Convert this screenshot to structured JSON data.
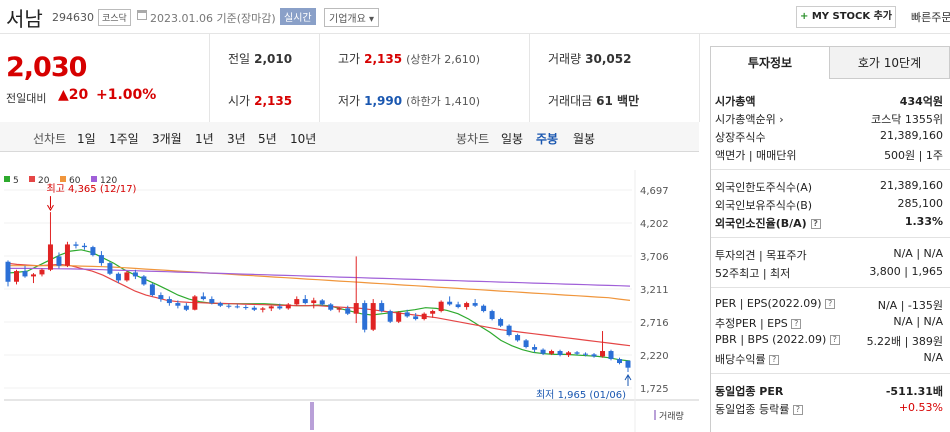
{
  "header": {
    "name": "서남",
    "code": "294630",
    "market": "코스닥",
    "date": "2023.01.06 기준(장마감)",
    "realtime": "실시간",
    "overview": "기업개요 ▾",
    "mystock_plus": "+",
    "mystock_label": "MY STOCK 추가",
    "quick_order": "빠른주문"
  },
  "price": {
    "current": "2,030",
    "change_label": "전일대비",
    "change_arrow": "▲",
    "change_value": "20",
    "change_pct": "+1.00%"
  },
  "stats": {
    "prev_close_label": "전일",
    "prev_close": "2,010",
    "open_label": "시가",
    "open": "2,135",
    "high_label": "고가",
    "high": "2,135",
    "upper_limit": "(상한가 2,610)",
    "low_label": "저가",
    "low": "1,990",
    "lower_limit": "(하한가 1,410)",
    "volume_label": "거래량",
    "volume": "30,052",
    "amount_label": "거래대금",
    "amount": "61 백만"
  },
  "chart_tabs": {
    "line_label": "선차트",
    "line_periods": [
      "1일",
      "1주일",
      "3개월",
      "1년",
      "3년",
      "5년",
      "10년"
    ],
    "candle_label": "봉차트",
    "candle_periods": [
      "일봉",
      "주봉",
      "월봉"
    ],
    "candle_selected": "주봉"
  },
  "chart_data": {
    "type": "candlestick",
    "legend": [
      {
        "name": "5",
        "color": "#2eaa2e"
      },
      {
        "name": "20",
        "color": "#e54646"
      },
      {
        "name": "60",
        "color": "#f0963c"
      },
      {
        "name": "120",
        "color": "#a060d8"
      }
    ],
    "y_ticks": [
      "4,697",
      "4,202",
      "3,706",
      "3,211",
      "2,716",
      "2,220",
      "1,725"
    ],
    "ylim": [
      1725,
      4697
    ],
    "max_annotation": "최고 4,365 (12/17)",
    "min_annotation": "최저 1,965 (01/06)",
    "volume_label": "거래량",
    "up_color": "#e02424",
    "down_color": "#2b6fd6",
    "candles": [
      [
        3620,
        3640,
        3250,
        3320
      ],
      [
        3320,
        3500,
        3280,
        3480
      ],
      [
        3480,
        3560,
        3380,
        3400
      ],
      [
        3400,
        3450,
        3300,
        3430
      ],
      [
        3430,
        3520,
        3400,
        3500
      ],
      [
        3500,
        4365,
        3480,
        3880
      ],
      [
        3700,
        3760,
        3520,
        3560
      ],
      [
        3560,
        3920,
        3540,
        3880
      ],
      [
        3880,
        3920,
        3820,
        3860
      ],
      [
        3860,
        3900,
        3800,
        3840
      ],
      [
        3840,
        3860,
        3700,
        3720
      ],
      [
        3720,
        3780,
        3560,
        3600
      ],
      [
        3600,
        3620,
        3420,
        3440
      ],
      [
        3440,
        3460,
        3300,
        3340
      ],
      [
        3340,
        3480,
        3320,
        3460
      ],
      [
        3460,
        3500,
        3360,
        3400
      ],
      [
        3400,
        3420,
        3260,
        3280
      ],
      [
        3280,
        3300,
        3100,
        3120
      ],
      [
        3120,
        3160,
        3020,
        3060
      ],
      [
        3060,
        3100,
        2960,
        3000
      ],
      [
        3000,
        3040,
        2920,
        2960
      ],
      [
        2960,
        3000,
        2880,
        2900
      ],
      [
        2900,
        3120,
        2890,
        3100
      ],
      [
        3100,
        3160,
        3040,
        3060
      ],
      [
        3060,
        3100,
        2980,
        3000
      ],
      [
        3000,
        3020,
        2940,
        2960
      ],
      [
        2960,
        2990,
        2920,
        2950
      ],
      [
        2950,
        2980,
        2920,
        2940
      ],
      [
        2940,
        2970,
        2900,
        2930
      ],
      [
        2930,
        2960,
        2880,
        2900
      ],
      [
        2900,
        2940,
        2860,
        2920
      ],
      [
        2920,
        2960,
        2880,
        2950
      ],
      [
        2950,
        2990,
        2900,
        2920
      ],
      [
        2920,
        3000,
        2900,
        2980
      ],
      [
        2980,
        3100,
        2960,
        3060
      ],
      [
        3060,
        3120,
        2980,
        3000
      ],
      [
        3000,
        3080,
        2920,
        3040
      ],
      [
        3040,
        3060,
        2960,
        2980
      ],
      [
        2980,
        3000,
        2880,
        2900
      ],
      [
        2900,
        2940,
        2860,
        2920
      ],
      [
        2920,
        2960,
        2820,
        2840
      ],
      [
        2840,
        3700,
        2700,
        3000
      ],
      [
        3000,
        3040,
        2560,
        2600
      ],
      [
        2600,
        3060,
        2580,
        3000
      ],
      [
        3000,
        3040,
        2860,
        2880
      ],
      [
        2880,
        2900,
        2700,
        2720
      ],
      [
        2720,
        2880,
        2700,
        2860
      ],
      [
        2860,
        2900,
        2780,
        2800
      ],
      [
        2800,
        2850,
        2740,
        2760
      ],
      [
        2760,
        2860,
        2740,
        2840
      ],
      [
        2840,
        2900,
        2780,
        2880
      ],
      [
        2880,
        3040,
        2860,
        3020
      ],
      [
        3020,
        3100,
        2960,
        2980
      ],
      [
        2980,
        3020,
        2920,
        2940
      ],
      [
        2940,
        3020,
        2900,
        3000
      ],
      [
        3000,
        3060,
        2940,
        2960
      ],
      [
        2960,
        2980,
        2860,
        2880
      ],
      [
        2880,
        2900,
        2740,
        2760
      ],
      [
        2760,
        2780,
        2640,
        2660
      ],
      [
        2660,
        2680,
        2500,
        2520
      ],
      [
        2520,
        2540,
        2420,
        2440
      ],
      [
        2440,
        2460,
        2320,
        2340
      ],
      [
        2340,
        2380,
        2260,
        2300
      ],
      [
        2300,
        2320,
        2220,
        2240
      ],
      [
        2240,
        2300,
        2220,
        2280
      ],
      [
        2280,
        2300,
        2200,
        2220
      ],
      [
        2220,
        2280,
        2190,
        2260
      ],
      [
        2260,
        2280,
        2220,
        2240
      ],
      [
        2240,
        2260,
        2200,
        2230
      ],
      [
        2230,
        2250,
        2180,
        2200
      ],
      [
        2200,
        2580,
        2180,
        2280
      ],
      [
        2280,
        2300,
        2140,
        2160
      ],
      [
        2160,
        2180,
        2080,
        2100
      ],
      [
        2135,
        2135,
        1965,
        2030
      ]
    ],
    "ma_levels": {
      "ma5": [
        3450,
        3460,
        3480,
        3560,
        3640,
        3720,
        3780,
        3800,
        3760,
        3680,
        3600,
        3500,
        3420,
        3350,
        3280,
        3200,
        3120,
        3060,
        3020,
        3000,
        2990,
        2990,
        2990,
        2990,
        2990,
        2980,
        2970,
        2960,
        2960,
        2970,
        2960,
        2920,
        2880,
        2840,
        2820,
        2840,
        2860,
        2880,
        2900,
        2930,
        2920,
        2890,
        2840,
        2760,
        2660,
        2560,
        2440,
        2360,
        2300,
        2260,
        2240,
        2230,
        2230,
        2220,
        2210,
        2200,
        2180,
        2150,
        2130
      ],
      "ma20": [
        3600,
        3580,
        3570,
        3560,
        3570,
        3580,
        3560,
        3520,
        3480,
        3420,
        3340,
        3260,
        3180,
        3120,
        3080,
        3040,
        3020,
        3010,
        3005,
        3000,
        2995,
        2990,
        2985,
        2980,
        2975,
        2970,
        2965,
        2960,
        2960,
        2960,
        2950,
        2940,
        2930,
        2920,
        2900,
        2880,
        2860,
        2840,
        2820,
        2800,
        2780,
        2750,
        2720,
        2690,
        2660,
        2630,
        2600,
        2580,
        2560,
        2540,
        2520,
        2500,
        2480,
        2460,
        2440,
        2420,
        2400,
        2380,
        2360
      ],
      "ma60": [
        3560,
        3560,
        3560,
        3560,
        3560,
        3560,
        3560,
        3555,
        3550,
        3545,
        3540,
        3530,
        3520,
        3510,
        3500,
        3490,
        3480,
        3470,
        3460,
        3450,
        3440,
        3430,
        3420,
        3410,
        3400,
        3390,
        3380,
        3370,
        3360,
        3350,
        3340,
        3330,
        3320,
        3310,
        3300,
        3290,
        3280,
        3270,
        3260,
        3250,
        3240,
        3230,
        3220,
        3210,
        3200,
        3190,
        3180,
        3170,
        3160,
        3150,
        3140,
        3130,
        3120,
        3110,
        3100,
        3090,
        3080,
        3060,
        3040
      ],
      "ma120": [
        3520,
        3520,
        3520,
        3518,
        3516,
        3514,
        3512,
        3510,
        3505,
        3500,
        3495,
        3490,
        3485,
        3480,
        3475,
        3470,
        3465,
        3460,
        3455,
        3450,
        3445,
        3440,
        3435,
        3430,
        3425,
        3420,
        3415,
        3410,
        3405,
        3400,
        3395,
        3390,
        3385,
        3380,
        3375,
        3370,
        3365,
        3360,
        3355,
        3350,
        3345,
        3340,
        3335,
        3330,
        3325,
        3320,
        3315,
        3310,
        3305,
        3300,
        3295,
        3290,
        3285,
        3280,
        3275,
        3270,
        3265,
        3260,
        3255
      ]
    }
  },
  "right_panel": {
    "tab_invest": "투자정보",
    "tab_hoga": "호가 10단계",
    "market_cap_label": "시가총액",
    "market_cap": "434억원",
    "rank_label": "시가총액순위",
    "rank": "코스닥 1355위",
    "shares_label": "상장주식수",
    "shares": "21,389,160",
    "par_label": "액면가 | 매매단위",
    "par": "500원 | 1주",
    "foreign_limit_label": "외국인한도주식수(A)",
    "foreign_limit": "21,389,160",
    "foreign_hold_label": "외국인보유주식수(B)",
    "foreign_hold": "285,100",
    "foreign_ratio_label": "외국인소진율(B/A)",
    "foreign_ratio": "1.33%",
    "opinion_label": "투자의견 | 목표주가",
    "opinion": "N/A | N/A",
    "week52_label": "52주최고 | 최저",
    "week52": "3,800 | 1,965",
    "per_label": "PER | EPS(2022.09)",
    "per": "N/A | -135원",
    "est_per_label": "추정PER | EPS",
    "est_per": "N/A | N/A",
    "pbr_label": "PBR | BPS (2022.09)",
    "pbr": "5.22배 | 389원",
    "div_label": "배당수익률",
    "div": "N/A",
    "ind_per_label": "동일업종 PER",
    "ind_per": "-511.31배",
    "ind_rate_label": "동일업종 등락률",
    "ind_rate": "+0.53%"
  }
}
